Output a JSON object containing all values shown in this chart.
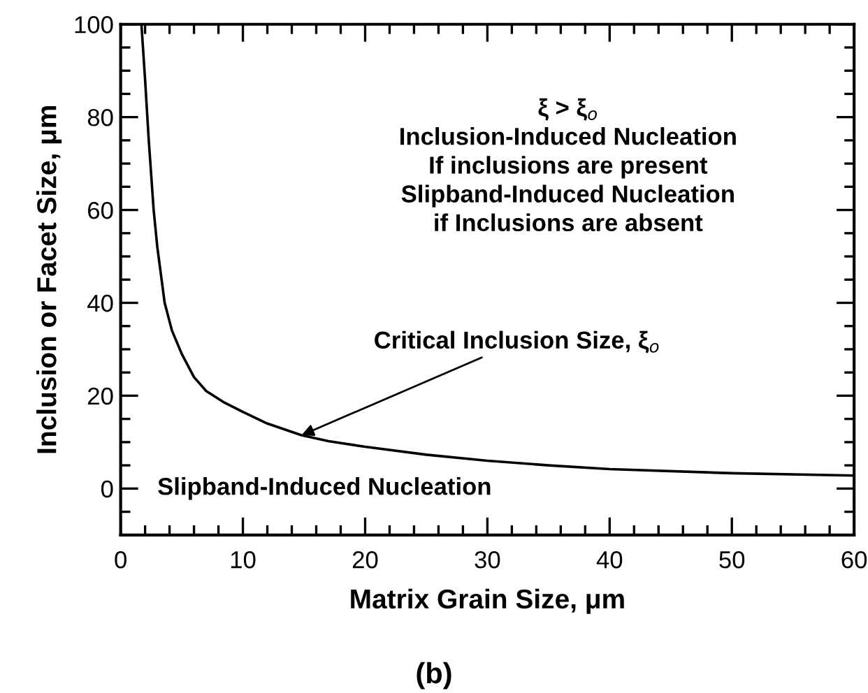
{
  "chart_data": {
    "type": "line",
    "xlabel": "Matrix Grain Size, μm",
    "ylabel": "Inclusion or Facet Size, μm",
    "series": [
      {
        "color": "#000000",
        "x": [
          1.7,
          2.0,
          2.3,
          2.7,
          3.0,
          3.6,
          4.2,
          5.0,
          6.0,
          7.0,
          8.5,
          10,
          12,
          14.8,
          17,
          20,
          25,
          30,
          35,
          40,
          50,
          60
        ],
        "values": [
          100,
          88,
          75,
          60,
          52,
          40,
          34,
          29,
          24,
          21,
          18.5,
          16.5,
          14,
          11.5,
          10.2,
          9,
          7.3,
          6,
          5,
          4.2,
          3.3,
          2.8
        ]
      }
    ],
    "xlim": [
      0,
      60
    ],
    "xticks": [
      0,
      10,
      20,
      30,
      40,
      50,
      60
    ],
    "ylim": [
      -10,
      100
    ],
    "yticks": [
      {
        "value": -10,
        "label": null
      },
      0,
      20,
      40,
      60,
      80,
      100
    ],
    "marker": "none",
    "line_style": "solid",
    "grid": false,
    "legend": false,
    "annotations": [
      {
        "text": "Critical Inclusion Size, ξ$_{o}$",
        "x": 14.8,
        "y": 11.5
      },
      "ξ > ξ$_{o}$\nInclusion-Induced Nucleation\nIf inclusions are present\nSlipband-Induced Nucleation\nif Inclusions are absent",
      "Slipband-Induced Nucleation",
      "(b)"
    ]
  }
}
